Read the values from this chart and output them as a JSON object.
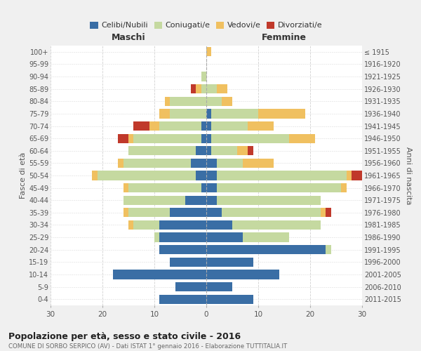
{
  "age_groups": [
    "100+",
    "95-99",
    "90-94",
    "85-89",
    "80-84",
    "75-79",
    "70-74",
    "65-69",
    "60-64",
    "55-59",
    "50-54",
    "45-49",
    "40-44",
    "35-39",
    "30-34",
    "25-29",
    "20-24",
    "15-19",
    "10-14",
    "5-9",
    "0-4"
  ],
  "birth_years": [
    "≤ 1915",
    "1916-1920",
    "1921-1925",
    "1926-1930",
    "1931-1935",
    "1936-1940",
    "1941-1945",
    "1946-1950",
    "1951-1955",
    "1956-1960",
    "1961-1965",
    "1966-1970",
    "1971-1975",
    "1976-1980",
    "1981-1985",
    "1986-1990",
    "1991-1995",
    "1996-2000",
    "2001-2005",
    "2006-2010",
    "2011-2015"
  ],
  "male": {
    "celibi": [
      0,
      0,
      0,
      0,
      0,
      0,
      1,
      1,
      2,
      3,
      2,
      1,
      4,
      7,
      9,
      9,
      9,
      7,
      18,
      6,
      9
    ],
    "coniugati": [
      0,
      0,
      1,
      1,
      7,
      7,
      8,
      13,
      13,
      13,
      19,
      14,
      12,
      8,
      5,
      1,
      0,
      0,
      0,
      0,
      0
    ],
    "vedovi": [
      0,
      0,
      0,
      1,
      1,
      2,
      2,
      1,
      0,
      1,
      1,
      1,
      0,
      1,
      1,
      0,
      0,
      0,
      0,
      0,
      0
    ],
    "divorziati": [
      0,
      0,
      0,
      1,
      0,
      0,
      3,
      2,
      0,
      0,
      0,
      0,
      0,
      0,
      0,
      0,
      0,
      0,
      0,
      0,
      0
    ]
  },
  "female": {
    "nubili": [
      0,
      0,
      0,
      0,
      0,
      1,
      1,
      1,
      1,
      2,
      2,
      2,
      2,
      3,
      5,
      7,
      23,
      9,
      14,
      5,
      9
    ],
    "coniugate": [
      0,
      0,
      0,
      2,
      3,
      9,
      7,
      15,
      5,
      5,
      25,
      24,
      20,
      19,
      17,
      9,
      1,
      0,
      0,
      0,
      0
    ],
    "vedove": [
      1,
      0,
      0,
      2,
      2,
      9,
      5,
      5,
      2,
      6,
      1,
      1,
      0,
      1,
      0,
      0,
      0,
      0,
      0,
      0,
      0
    ],
    "divorziate": [
      0,
      0,
      0,
      0,
      0,
      0,
      0,
      0,
      1,
      0,
      3,
      0,
      0,
      1,
      0,
      0,
      0,
      0,
      0,
      0,
      0
    ]
  },
  "colors": {
    "celibi": "#3a6ea5",
    "coniugati": "#c5d9a0",
    "vedovi": "#f0c060",
    "divorziati": "#c0392b"
  },
  "title": "Popolazione per età, sesso e stato civile - 2016",
  "subtitle": "COMUNE DI SORBO SERPICO (AV) - Dati ISTAT 1° gennaio 2016 - Elaborazione TUTTITALIA.IT",
  "xlabel_left": "Maschi",
  "xlabel_right": "Femmine",
  "ylabel_left": "Fasce di età",
  "ylabel_right": "Anni di nascita",
  "xlim": 30,
  "legend_labels": [
    "Celibi/Nubili",
    "Coniugati/e",
    "Vedovi/e",
    "Divorziati/e"
  ],
  "bg_color": "#f0f0f0",
  "plot_bg_color": "#ffffff",
  "grid_color": "#cccccc"
}
